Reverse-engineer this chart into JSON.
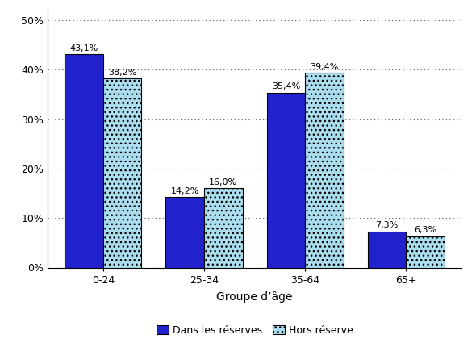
{
  "categories": [
    "0-24",
    "25-34",
    "35-64",
    "65+"
  ],
  "series": {
    "Dans les réserves": [
      43.1,
      14.2,
      35.4,
      7.3
    ],
    "Hors réserve": [
      38.2,
      16.0,
      39.4,
      6.3
    ]
  },
  "labels": {
    "Dans les réserves": [
      "43,1%",
      "14,2%",
      "35,4%",
      "7,3%"
    ],
    "Hors réserve": [
      "38,2%",
      "16,0%",
      "39,4%",
      "6,3%"
    ]
  },
  "bar_colors": {
    "Dans les réserves": "#2222CC",
    "Hors réserve": "#AADDEE"
  },
  "hatch_patterns": {
    "Dans les réserves": "",
    "Hors réserve": "..."
  },
  "xlabel": "Groupe d’âge",
  "ylim": [
    0,
    52
  ],
  "yticks": [
    0,
    10,
    20,
    30,
    40,
    50
  ],
  "ytick_labels": [
    "0%",
    "10%",
    "20%",
    "30%",
    "40%",
    "50%"
  ],
  "bar_width": 0.38,
  "legend_labels": [
    "Dans les réserves",
    "Hors réserve"
  ],
  "background_color": "#ffffff",
  "grid_color": "#555555",
  "label_fontsize": 8,
  "axis_fontsize": 10,
  "tick_fontsize": 9
}
